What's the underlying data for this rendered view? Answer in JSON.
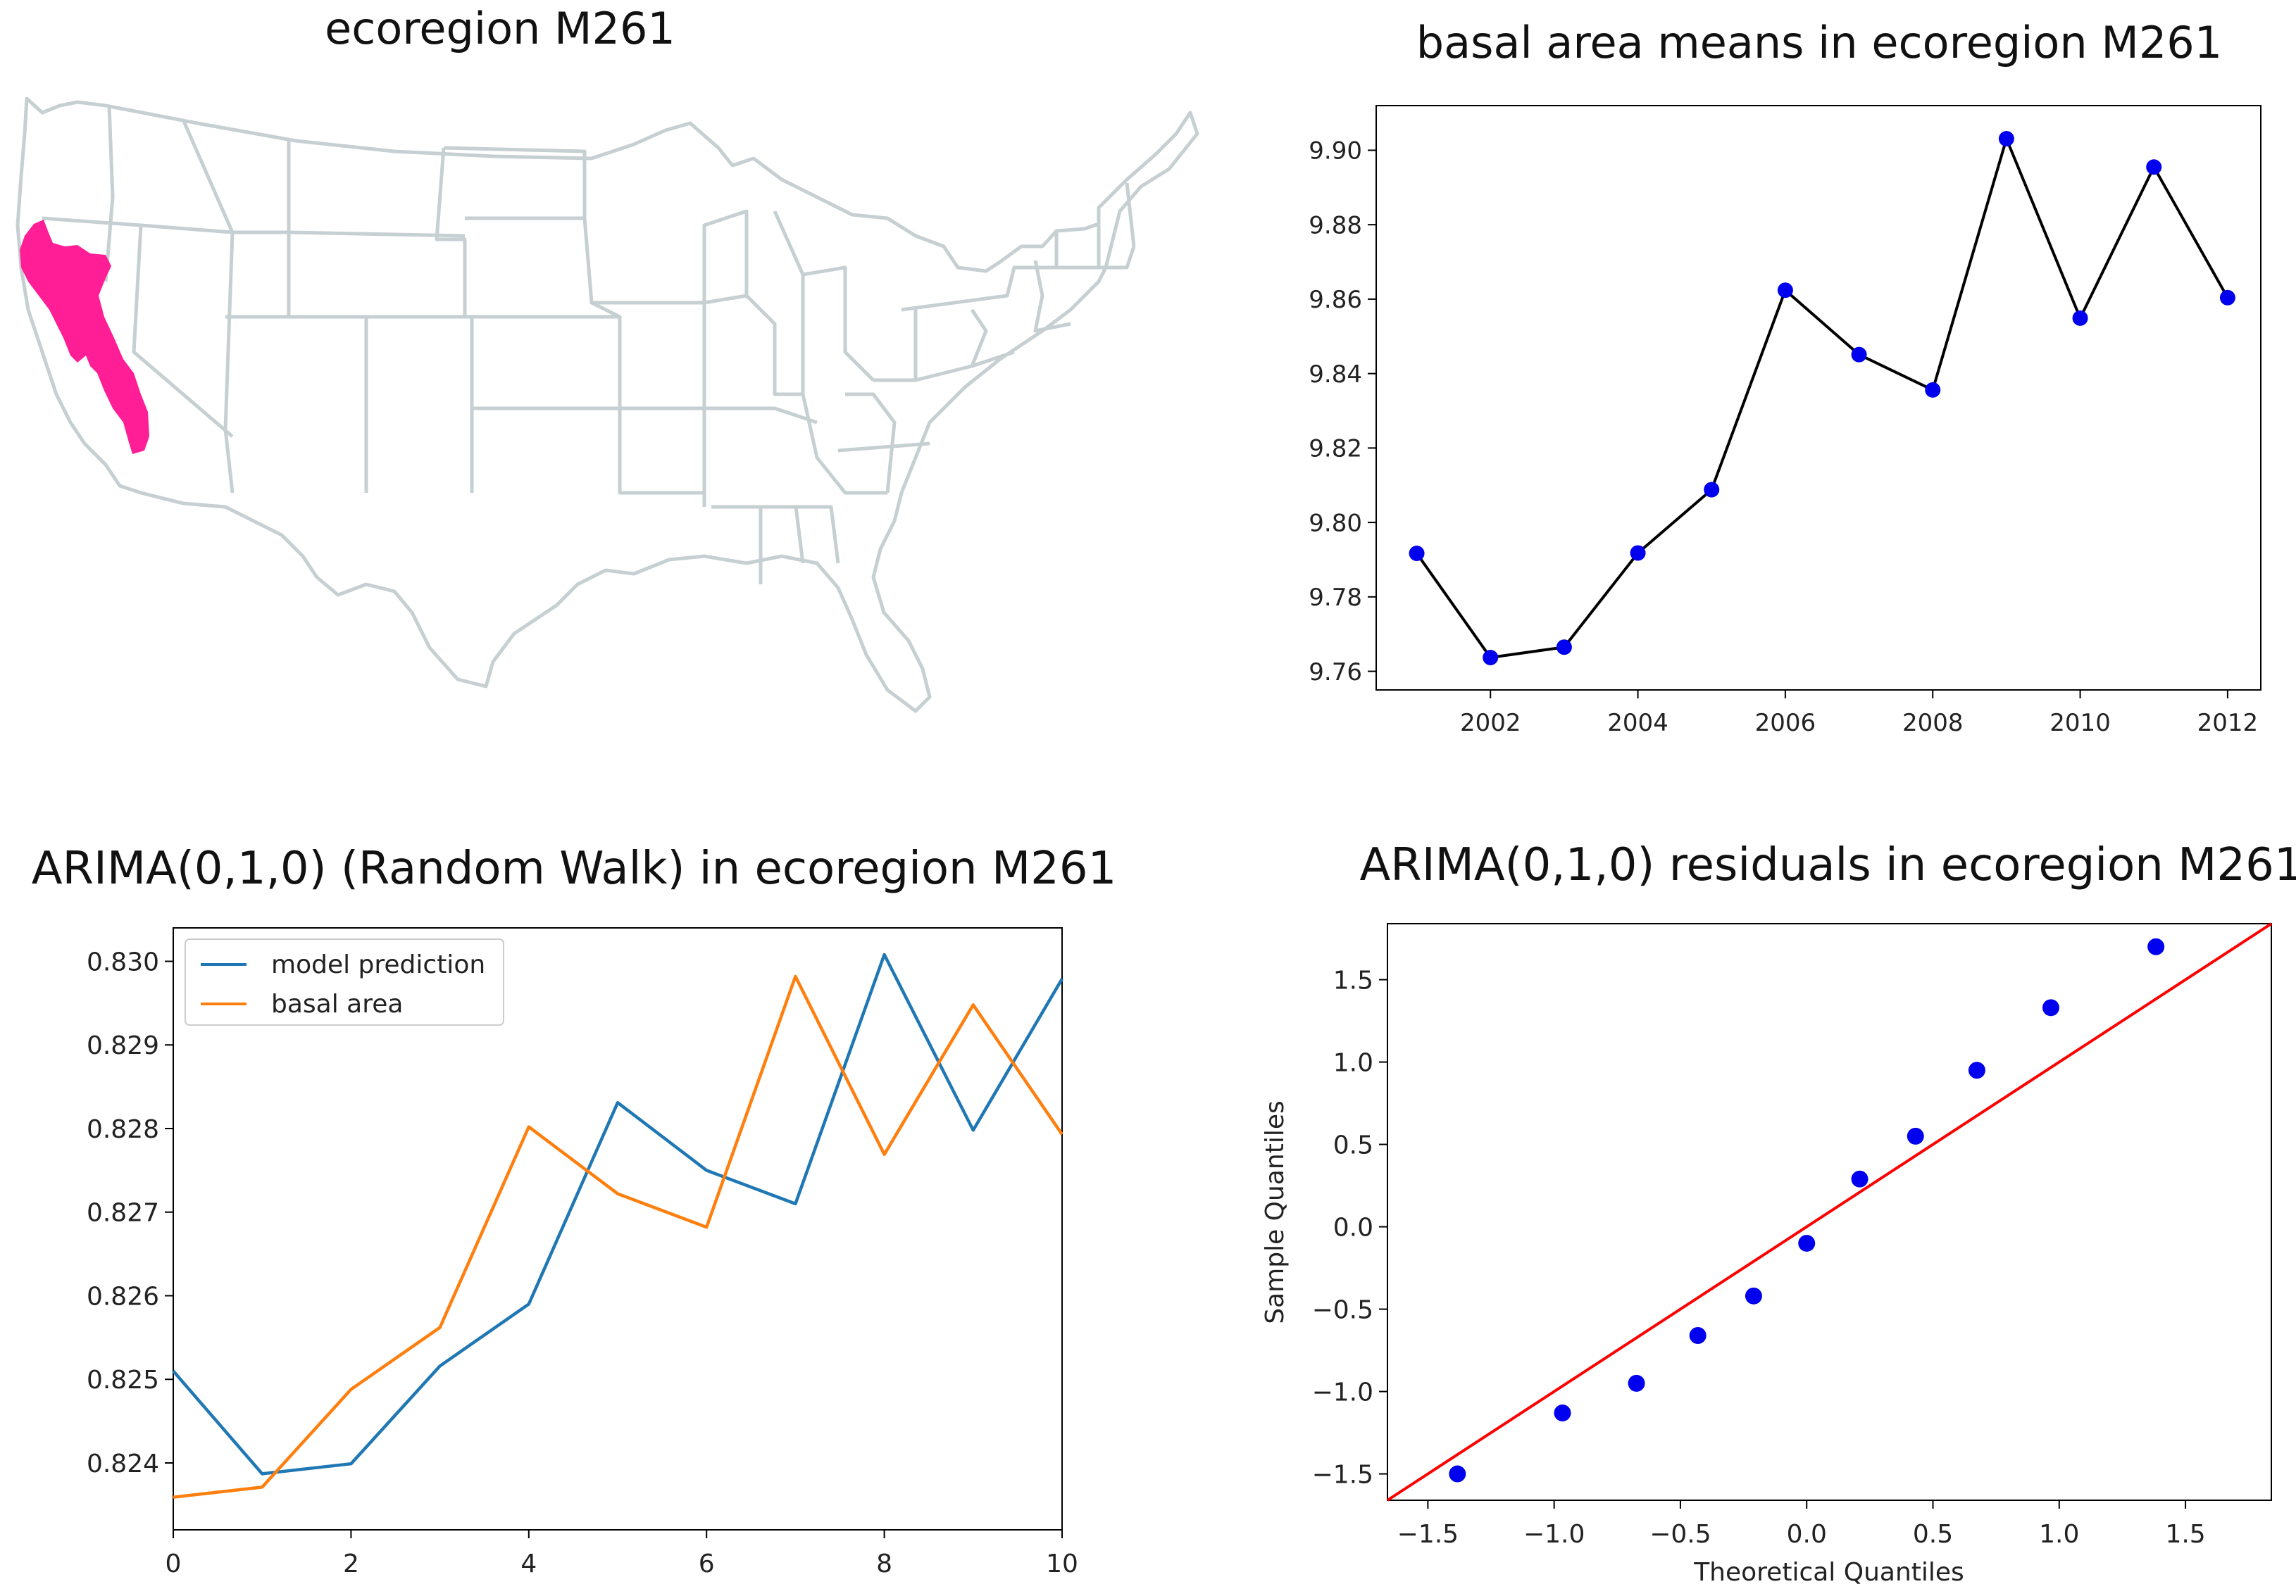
{
  "colors": {
    "region": "#ff1e96",
    "state_lines": "#c6cfd2",
    "marker": "#0000ee",
    "black_line": "#000000",
    "prediction": "#1f77b4",
    "observed": "#ff7f0e",
    "ref_line": "#ff0000"
  },
  "map_panel": {
    "title": "ecoregion M261",
    "highlight_icon": "ecoregion-highlight"
  },
  "chart_data": [
    {
      "type": "line",
      "title": "basal area means in ecoregion M261",
      "xlabel": "",
      "ylabel": "",
      "x": [
        2001,
        2002,
        2003,
        2004,
        2005,
        2006,
        2007,
        2008,
        2009,
        2010,
        2011,
        2012
      ],
      "values": [
        9.7917,
        9.7637,
        9.7665,
        9.7918,
        9.8088,
        9.8624,
        9.8451,
        9.8356,
        9.9031,
        9.8549,
        9.8955,
        9.8604
      ],
      "xlim": [
        2000.45,
        2012.45
      ],
      "ylim": [
        9.755,
        9.912
      ],
      "xticks": [
        2002,
        2004,
        2006,
        2008,
        2010,
        2012
      ],
      "xtick_labels": [
        "2002",
        "2004",
        "2006",
        "2008",
        "2010",
        "2012"
      ],
      "yticks": [
        9.76,
        9.78,
        9.8,
        9.82,
        9.84,
        9.86,
        9.88,
        9.9
      ],
      "ytick_labels": [
        "9.76",
        "9.78",
        "9.80",
        "9.82",
        "9.84",
        "9.86",
        "9.88",
        "9.90"
      ],
      "grid": false
    },
    {
      "type": "line",
      "title": "ARIMA(0,1,0) (Random Walk) in ecoregion M261",
      "xlabel": "",
      "ylabel": "",
      "x": [
        0,
        1,
        2,
        3,
        4,
        5,
        6,
        7,
        8,
        9,
        10
      ],
      "series": [
        {
          "name": "model prediction",
          "values": [
            0.8251,
            0.82387,
            0.82399,
            0.82516,
            0.8259,
            0.82831,
            0.8275,
            0.8271,
            0.83008,
            0.82798,
            0.82979
          ]
        },
        {
          "name": "basal area",
          "values": [
            0.82359,
            0.82371,
            0.82488,
            0.82562,
            0.82802,
            0.82722,
            0.82682,
            0.82982,
            0.82769,
            0.82948,
            0.82793
          ]
        }
      ],
      "xlim": [
        0,
        10
      ],
      "ylim": [
        0.8232,
        0.8304
      ],
      "xticks": [
        0,
        2,
        4,
        6,
        8,
        10
      ],
      "xtick_labels": [
        "0",
        "2",
        "4",
        "6",
        "8",
        "10"
      ],
      "yticks": [
        0.824,
        0.825,
        0.826,
        0.827,
        0.828,
        0.829,
        0.83
      ],
      "ytick_labels": [
        "0.824",
        "0.825",
        "0.826",
        "0.827",
        "0.828",
        "0.829",
        "0.830"
      ],
      "legend": {
        "position": "top-left",
        "entries": [
          "model prediction",
          "basal area"
        ]
      },
      "grid": false
    },
    {
      "type": "scatter",
      "title": "ARIMA(0,1,0) residuals in ecoregion M261",
      "xlabel": "Theoretical Quantiles",
      "ylabel": "Sample Quantiles",
      "points_x": [
        -1.383,
        -0.967,
        -0.674,
        -0.431,
        -0.21,
        0.0,
        0.21,
        0.431,
        0.674,
        0.967,
        1.383
      ],
      "points_y": [
        -1.5,
        -1.13,
        -0.95,
        -0.66,
        -0.42,
        -0.1,
        0.29,
        0.55,
        0.95,
        1.33,
        1.7
      ],
      "reference_line": {
        "slope": 1,
        "intercept": 0
      },
      "xlim": [
        -1.66,
        1.84
      ],
      "ylim": [
        -1.66,
        1.84
      ],
      "xticks": [
        -1.5,
        -1.0,
        -0.5,
        0.0,
        0.5,
        1.0,
        1.5
      ],
      "xtick_labels": [
        "−1.5",
        "−1.0",
        "−0.5",
        "0.0",
        "0.5",
        "1.0",
        "1.5"
      ],
      "yticks": [
        -1.5,
        -1.0,
        -0.5,
        0.0,
        0.5,
        1.0,
        1.5
      ],
      "ytick_labels": [
        "−1.5",
        "−1.0",
        "−0.5",
        "0.0",
        "0.5",
        "1.0",
        "1.5"
      ],
      "grid": false
    }
  ]
}
